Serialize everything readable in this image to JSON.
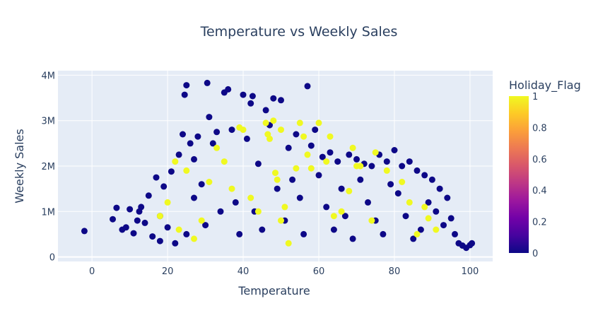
{
  "chart_data": {
    "type": "scatter",
    "title": "Temperature vs Weekly Sales",
    "xlabel": "Temperature",
    "ylabel": "Weekly Sales",
    "xlim": [
      -9,
      106
    ],
    "ylim": [
      -100000,
      4100000
    ],
    "x_ticks": [
      0,
      20,
      40,
      60,
      80,
      100
    ],
    "x_tick_labels": [
      "0",
      "20",
      "40",
      "60",
      "80",
      "100"
    ],
    "y_ticks": [
      0,
      1000000,
      2000000,
      3000000,
      4000000
    ],
    "y_tick_labels": [
      "0",
      "1M",
      "2M",
      "3M",
      "4M"
    ],
    "grid": true,
    "color_scale": {
      "title": "Holiday_Flag",
      "range": [
        0,
        1
      ],
      "ticks": [
        0,
        0.2,
        0.4,
        0.6,
        0.8,
        1
      ],
      "tick_labels": [
        "0",
        "0.2",
        "0.4",
        "0.6",
        "0.8",
        "1"
      ],
      "colors": [
        "#0d0887",
        "#46039f",
        "#7201a8",
        "#9c179e",
        "#bd3786",
        "#d8576b",
        "#ed7953",
        "#fb9f3a",
        "#fdca26",
        "#f0f921"
      ]
    },
    "series": [
      {
        "color_value": 0,
        "points": [
          [
            -2,
            570000
          ],
          [
            5.5,
            830000
          ],
          [
            6.5,
            1080000
          ],
          [
            8,
            600000
          ],
          [
            10,
            1050000
          ],
          [
            11,
            520000
          ],
          [
            12,
            800000
          ],
          [
            12.5,
            1000000
          ],
          [
            14,
            750000
          ],
          [
            15,
            1350000
          ],
          [
            16,
            450000
          ],
          [
            17,
            1750000
          ],
          [
            18,
            900000
          ],
          [
            19,
            1550000
          ],
          [
            20,
            650000
          ],
          [
            21,
            1880000
          ],
          [
            22,
            300000
          ],
          [
            23,
            2250000
          ],
          [
            24,
            2700000
          ],
          [
            24.5,
            3570000
          ],
          [
            25,
            3780000
          ],
          [
            26,
            2500000
          ],
          [
            27,
            2150000
          ],
          [
            28,
            2650000
          ],
          [
            29,
            1600000
          ],
          [
            30.5,
            3830000
          ],
          [
            31,
            3080000
          ],
          [
            32,
            2500000
          ],
          [
            33,
            2750000
          ],
          [
            35,
            3620000
          ],
          [
            36,
            3690000
          ],
          [
            37,
            2800000
          ],
          [
            38,
            1200000
          ],
          [
            40,
            3570000
          ],
          [
            41,
            2600000
          ],
          [
            42,
            3380000
          ],
          [
            42.5,
            3540000
          ],
          [
            44,
            2050000
          ],
          [
            46,
            3230000
          ],
          [
            47,
            2900000
          ],
          [
            48,
            3490000
          ],
          [
            50,
            3450000
          ],
          [
            52,
            2400000
          ],
          [
            54,
            2700000
          ],
          [
            57,
            3760000
          ],
          [
            58,
            2450000
          ],
          [
            59,
            2800000
          ],
          [
            61,
            2200000
          ],
          [
            63,
            2300000
          ],
          [
            65,
            2100000
          ],
          [
            68,
            2250000
          ],
          [
            70,
            2150000
          ],
          [
            72,
            2050000
          ],
          [
            74,
            2000000
          ],
          [
            76,
            2250000
          ],
          [
            78,
            2100000
          ],
          [
            80,
            2350000
          ],
          [
            82,
            2000000
          ],
          [
            84,
            2100000
          ],
          [
            86,
            1900000
          ],
          [
            88,
            1800000
          ],
          [
            90,
            1700000
          ],
          [
            92,
            1500000
          ],
          [
            94,
            1300000
          ],
          [
            95,
            850000
          ],
          [
            96,
            500000
          ],
          [
            97,
            300000
          ],
          [
            98,
            250000
          ],
          [
            99,
            200000
          ],
          [
            100,
            260000
          ],
          [
            100.5,
            300000
          ],
          [
            93,
            700000
          ],
          [
            91,
            1000000
          ],
          [
            89,
            1200000
          ],
          [
            87,
            600000
          ],
          [
            85,
            400000
          ],
          [
            83,
            900000
          ],
          [
            81,
            1400000
          ],
          [
            79,
            1600000
          ],
          [
            77,
            500000
          ],
          [
            75,
            800000
          ],
          [
            73,
            1200000
          ],
          [
            71,
            1700000
          ],
          [
            69,
            400000
          ],
          [
            67,
            900000
          ],
          [
            66,
            1500000
          ],
          [
            64,
            600000
          ],
          [
            62,
            1100000
          ],
          [
            60,
            1800000
          ],
          [
            56,
            500000
          ],
          [
            55,
            1300000
          ],
          [
            53,
            1700000
          ],
          [
            51,
            800000
          ],
          [
            49,
            1500000
          ],
          [
            45,
            600000
          ],
          [
            43,
            1000000
          ],
          [
            39,
            500000
          ],
          [
            34,
            1000000
          ],
          [
            30,
            700000
          ],
          [
            27,
            1300000
          ],
          [
            25,
            500000
          ],
          [
            18,
            350000
          ],
          [
            13,
            1100000
          ],
          [
            9,
            650000
          ]
        ]
      },
      {
        "color_value": 1,
        "points": [
          [
            18,
            900000
          ],
          [
            20,
            1200000
          ],
          [
            22,
            2100000
          ],
          [
            23,
            600000
          ],
          [
            25,
            1900000
          ],
          [
            27,
            400000
          ],
          [
            29,
            800000
          ],
          [
            31,
            1650000
          ],
          [
            33,
            2400000
          ],
          [
            35,
            2100000
          ],
          [
            37,
            1500000
          ],
          [
            39,
            2850000
          ],
          [
            40,
            2800000
          ],
          [
            42,
            1300000
          ],
          [
            44,
            1000000
          ],
          [
            46,
            2950000
          ],
          [
            46.5,
            2700000
          ],
          [
            47,
            2600000
          ],
          [
            48,
            3000000
          ],
          [
            48.5,
            1850000
          ],
          [
            49,
            1700000
          ],
          [
            50,
            2800000
          ],
          [
            51,
            1100000
          ],
          [
            52,
            300000
          ],
          [
            54,
            1950000
          ],
          [
            55,
            2950000
          ],
          [
            56,
            2650000
          ],
          [
            57,
            2250000
          ],
          [
            58,
            1950000
          ],
          [
            60,
            2950000
          ],
          [
            62,
            2100000
          ],
          [
            63,
            2650000
          ],
          [
            64,
            900000
          ],
          [
            66,
            1000000
          ],
          [
            68,
            1450000
          ],
          [
            69,
            2400000
          ],
          [
            70,
            2000000
          ],
          [
            71,
            2000000
          ],
          [
            74,
            800000
          ],
          [
            75,
            2300000
          ],
          [
            78,
            1900000
          ],
          [
            82,
            1650000
          ],
          [
            84,
            1200000
          ],
          [
            86,
            500000
          ],
          [
            88,
            1100000
          ],
          [
            89,
            850000
          ],
          [
            91,
            600000
          ],
          [
            50,
            800000
          ]
        ]
      }
    ]
  }
}
